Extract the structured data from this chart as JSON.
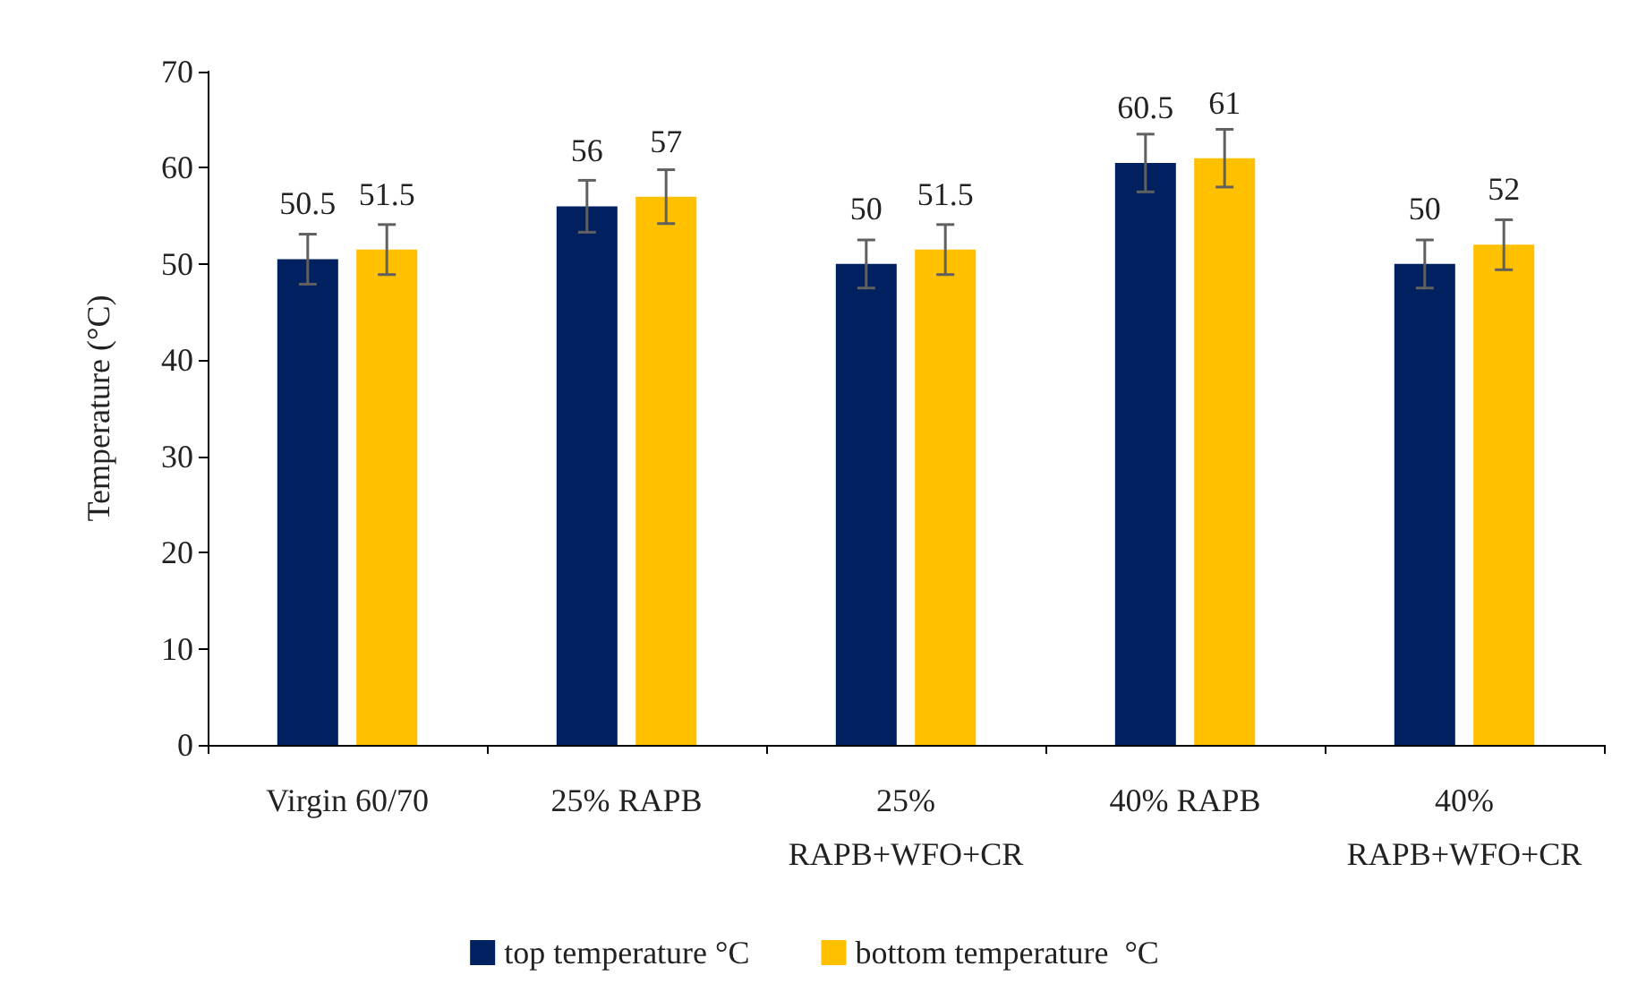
{
  "chart_data": {
    "type": "bar",
    "ylabel": "Temperature (°C)",
    "categories": [
      "Virgin 60/70",
      "25% RAPB",
      "25%\nRAPB+WFO+CR",
      "40% RAPB",
      "40%\nRAPB+WFO+CR"
    ],
    "series": [
      {
        "name": "top temperature °C",
        "color": "#002060",
        "values": [
          50.5,
          56,
          50,
          60.5,
          50
        ],
        "errors": [
          2.6,
          2.7,
          2.5,
          3,
          2.5
        ]
      },
      {
        "name": "bottom temperature  °C",
        "color": "#ffc000",
        "values": [
          51.5,
          57,
          51.5,
          61,
          52
        ],
        "errors": [
          2.6,
          2.8,
          2.6,
          3,
          2.6
        ]
      }
    ],
    "ylim": [
      0,
      70
    ],
    "yticks": [
      0,
      10,
      20,
      30,
      40,
      50,
      60,
      70
    ],
    "grid": false,
    "legend": "bottom",
    "data_labels": true
  }
}
